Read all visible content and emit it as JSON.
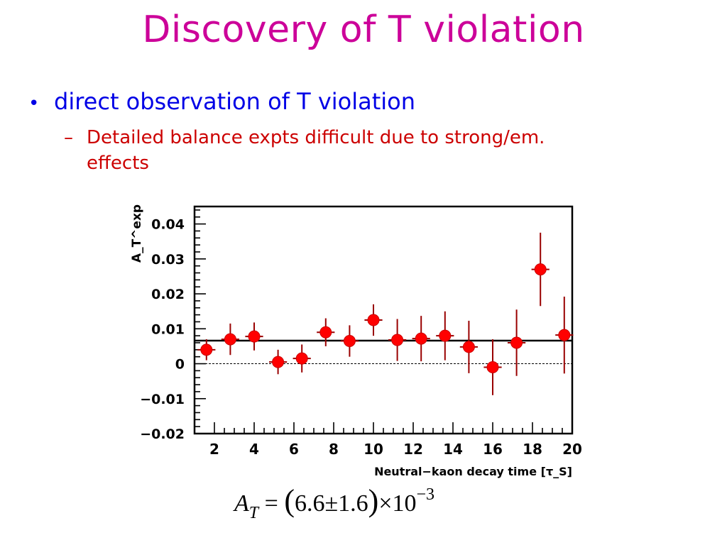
{
  "title": "Discovery of T violation",
  "bullet": {
    "marker": "•",
    "text": "direct observation of T violation"
  },
  "sub_bullet": {
    "marker": "–",
    "text": "Detailed balance expts difficult due to strong/em. effects"
  },
  "chart_data": {
    "type": "scatter",
    "ylabel": "A_T^exp",
    "xlabel": "Neutral−kaon decay time  [τ_S]",
    "xlim": [
      1,
      20
    ],
    "ylim": [
      -0.02,
      0.045
    ],
    "x_ticks": [
      2,
      4,
      6,
      8,
      10,
      12,
      14,
      16,
      18,
      20
    ],
    "y_ticks": [
      -0.02,
      -0.01,
      0,
      0.01,
      0.02,
      0.03,
      0.04
    ],
    "y_tick_labels": [
      "−0.02",
      "−0.01",
      "0",
      "0.01",
      "0.02",
      "0.03",
      "0.04"
    ],
    "points": [
      {
        "x": 1.6,
        "y": 0.004,
        "xerr": 0.45,
        "yerr": 0.003
      },
      {
        "x": 2.8,
        "y": 0.007,
        "xerr": 0.45,
        "yerr": 0.0045
      },
      {
        "x": 4.0,
        "y": 0.0078,
        "xerr": 0.45,
        "yerr": 0.004
      },
      {
        "x": 5.2,
        "y": 0.0005,
        "xerr": 0.45,
        "yerr": 0.0035
      },
      {
        "x": 6.4,
        "y": 0.0015,
        "xerr": 0.45,
        "yerr": 0.004
      },
      {
        "x": 7.6,
        "y": 0.009,
        "xerr": 0.45,
        "yerr": 0.004
      },
      {
        "x": 8.8,
        "y": 0.0065,
        "xerr": 0.45,
        "yerr": 0.0045
      },
      {
        "x": 10.0,
        "y": 0.0125,
        "xerr": 0.45,
        "yerr": 0.0045
      },
      {
        "x": 11.2,
        "y": 0.0068,
        "xerr": 0.45,
        "yerr": 0.006
      },
      {
        "x": 12.4,
        "y": 0.0072,
        "xerr": 0.45,
        "yerr": 0.0065
      },
      {
        "x": 13.6,
        "y": 0.008,
        "xerr": 0.45,
        "yerr": 0.007
      },
      {
        "x": 14.8,
        "y": 0.0048,
        "xerr": 0.45,
        "yerr": 0.0075
      },
      {
        "x": 16.0,
        "y": -0.001,
        "xerr": 0.45,
        "yerr": 0.008
      },
      {
        "x": 17.2,
        "y": 0.006,
        "xerr": 0.45,
        "yerr": 0.0095
      },
      {
        "x": 18.4,
        "y": 0.027,
        "xerr": 0.45,
        "yerr": 0.0105
      },
      {
        "x": 19.6,
        "y": 0.0082,
        "xerr": 0.45,
        "yerr": 0.011
      }
    ],
    "fit_line_y": 0.0066,
    "zero_line_style": "dashed",
    "marker_color": "#ff0000",
    "grid": false
  },
  "formula": {
    "symbol": "A",
    "subscript": "T",
    "equals": "=",
    "open_paren": "(",
    "value": "6.6",
    "pm": "±",
    "error": "1.6",
    "close_paren": ")",
    "times": "×",
    "base": "10",
    "exponent": "−3"
  }
}
